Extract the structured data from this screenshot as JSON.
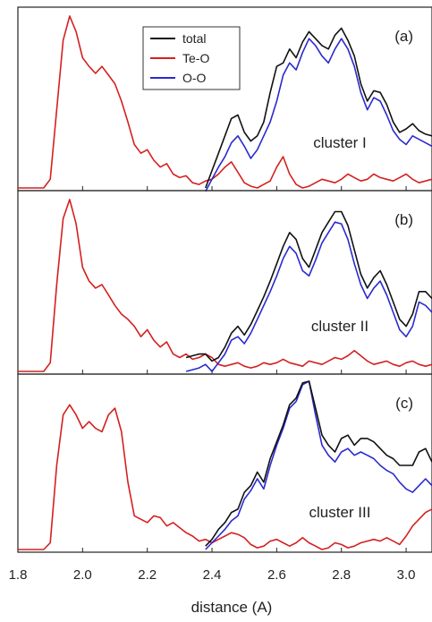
{
  "chart_data": {
    "type": "line",
    "xlabel": "distance (A)",
    "xlim": [
      1.8,
      3.08
    ],
    "xticks": [
      1.8,
      2.0,
      2.2,
      2.4,
      2.6,
      2.8,
      3.0
    ],
    "xtick_labels": [
      "1.8",
      "2.0",
      "2.2",
      "2.4",
      "2.6",
      "2.8",
      "3.0"
    ],
    "legend": {
      "placement": "top-center",
      "entries": [
        {
          "name": "total",
          "color": "#111111"
        },
        {
          "name": "Te-O",
          "color": "#d42020"
        },
        {
          "name": "O-O",
          "color": "#2a2ad0"
        }
      ]
    },
    "colors": {
      "total": "#111111",
      "Te-O": "#d42020",
      "O-O": "#2a2ad0"
    },
    "panels": [
      {
        "label": "(a)",
        "annotation": "cluster I",
        "ylim": [
          0,
          1.0
        ],
        "series": [
          {
            "name": "Te-O",
            "x": [
              1.8,
              1.88,
              1.9,
              1.92,
              1.94,
              1.96,
              1.98,
              2.0,
              2.02,
              2.04,
              2.06,
              2.08,
              2.1,
              2.12,
              2.14,
              2.16,
              2.18,
              2.2,
              2.22,
              2.24,
              2.26,
              2.28,
              2.3,
              2.32,
              2.34,
              2.36,
              2.38,
              2.4,
              2.42,
              2.44,
              2.46,
              2.48,
              2.5,
              2.52,
              2.54,
              2.56,
              2.58,
              2.6,
              2.62,
              2.64,
              2.66,
              2.68,
              2.7,
              2.72,
              2.74,
              2.76,
              2.78,
              2.8,
              2.82,
              2.84,
              2.86,
              2.88,
              2.9,
              2.92,
              2.94,
              2.96,
              2.98,
              3.0,
              3.02,
              3.04,
              3.06,
              3.08
            ],
            "values": [
              0,
              0,
              0.05,
              0.45,
              0.85,
              0.99,
              0.9,
              0.75,
              0.7,
              0.66,
              0.7,
              0.65,
              0.6,
              0.5,
              0.38,
              0.25,
              0.2,
              0.22,
              0.16,
              0.12,
              0.14,
              0.08,
              0.06,
              0.07,
              0.03,
              0.02,
              0.04,
              0.05,
              0.08,
              0.12,
              0.15,
              0.09,
              0.03,
              0.01,
              0.0,
              0.02,
              0.04,
              0.12,
              0.18,
              0.08,
              0.02,
              0.0,
              0.01,
              0.03,
              0.05,
              0.04,
              0.03,
              0.05,
              0.08,
              0.06,
              0.04,
              0.05,
              0.08,
              0.06,
              0.05,
              0.04,
              0.06,
              0.08,
              0.05,
              0.03,
              0.04,
              0.05
            ]
          },
          {
            "name": "O-O",
            "x": [
              2.38,
              2.4,
              2.42,
              2.44,
              2.46,
              2.48,
              2.5,
              2.52,
              2.54,
              2.56,
              2.58,
              2.6,
              2.62,
              2.64,
              2.66,
              2.68,
              2.7,
              2.72,
              2.74,
              2.76,
              2.78,
              2.8,
              2.82,
              2.84,
              2.86,
              2.88,
              2.9,
              2.92,
              2.94,
              2.96,
              2.98,
              3.0,
              3.02,
              3.04,
              3.06,
              3.08
            ],
            "values": [
              -0.02,
              0.05,
              0.12,
              0.18,
              0.26,
              0.3,
              0.24,
              0.17,
              0.22,
              0.3,
              0.38,
              0.5,
              0.65,
              0.72,
              0.68,
              0.78,
              0.86,
              0.82,
              0.76,
              0.72,
              0.8,
              0.86,
              0.8,
              0.7,
              0.55,
              0.45,
              0.52,
              0.5,
              0.42,
              0.33,
              0.28,
              0.25,
              0.3,
              0.28,
              0.26,
              0.24
            ]
          },
          {
            "name": "total",
            "x": [
              2.38,
              2.4,
              2.42,
              2.44,
              2.46,
              2.48,
              2.5,
              2.52,
              2.54,
              2.56,
              2.58,
              2.6,
              2.62,
              2.64,
              2.66,
              2.68,
              2.7,
              2.72,
              2.74,
              2.76,
              2.78,
              2.8,
              2.82,
              2.84,
              2.86,
              2.88,
              2.9,
              2.92,
              2.94,
              2.96,
              2.98,
              3.0,
              3.02,
              3.04,
              3.06,
              3.08
            ],
            "values": [
              0.0,
              0.1,
              0.2,
              0.3,
              0.4,
              0.42,
              0.32,
              0.27,
              0.3,
              0.38,
              0.55,
              0.7,
              0.72,
              0.8,
              0.75,
              0.84,
              0.9,
              0.86,
              0.82,
              0.8,
              0.88,
              0.92,
              0.85,
              0.76,
              0.6,
              0.5,
              0.56,
              0.55,
              0.48,
              0.38,
              0.32,
              0.34,
              0.37,
              0.33,
              0.31,
              0.3
            ]
          }
        ]
      },
      {
        "label": "(b)",
        "annotation": "cluster II",
        "ylim": [
          0,
          1.0
        ],
        "series": [
          {
            "name": "Te-O",
            "x": [
              1.8,
              1.88,
              1.9,
              1.92,
              1.94,
              1.96,
              1.98,
              2.0,
              2.02,
              2.04,
              2.06,
              2.08,
              2.1,
              2.12,
              2.14,
              2.16,
              2.18,
              2.2,
              2.22,
              2.24,
              2.26,
              2.28,
              2.3,
              2.32,
              2.34,
              2.36,
              2.38,
              2.4,
              2.42,
              2.44,
              2.46,
              2.48,
              2.5,
              2.52,
              2.54,
              2.56,
              2.58,
              2.6,
              2.62,
              2.64,
              2.66,
              2.68,
              2.7,
              2.72,
              2.74,
              2.76,
              2.78,
              2.8,
              2.82,
              2.84,
              2.86,
              2.88,
              2.9,
              2.92,
              2.94,
              2.96,
              2.98,
              3.0,
              3.02,
              3.04,
              3.06,
              3.08
            ],
            "values": [
              0,
              0,
              0.05,
              0.5,
              0.88,
              0.99,
              0.85,
              0.6,
              0.52,
              0.48,
              0.5,
              0.44,
              0.38,
              0.33,
              0.3,
              0.26,
              0.2,
              0.24,
              0.18,
              0.14,
              0.17,
              0.1,
              0.08,
              0.1,
              0.07,
              0.08,
              0.1,
              0.08,
              0.04,
              0.03,
              0.04,
              0.05,
              0.03,
              0.02,
              0.03,
              0.05,
              0.04,
              0.05,
              0.07,
              0.05,
              0.04,
              0.03,
              0.06,
              0.05,
              0.04,
              0.06,
              0.08,
              0.07,
              0.09,
              0.12,
              0.09,
              0.06,
              0.04,
              0.05,
              0.06,
              0.04,
              0.03,
              0.05,
              0.06,
              0.04,
              0.03,
              0.04
            ]
          },
          {
            "name": "O-O",
            "x": [
              2.32,
              2.34,
              2.36,
              2.38,
              2.4,
              2.42,
              2.44,
              2.46,
              2.48,
              2.5,
              2.52,
              2.54,
              2.56,
              2.58,
              2.6,
              2.62,
              2.64,
              2.66,
              2.68,
              2.7,
              2.72,
              2.74,
              2.76,
              2.78,
              2.8,
              2.82,
              2.84,
              2.86,
              2.88,
              2.9,
              2.92,
              2.94,
              2.96,
              2.98,
              3.0,
              3.02,
              3.04,
              3.06,
              3.08
            ],
            "values": [
              0.0,
              0.01,
              0.02,
              0.04,
              0.0,
              0.05,
              0.1,
              0.18,
              0.2,
              0.16,
              0.22,
              0.3,
              0.38,
              0.46,
              0.55,
              0.65,
              0.72,
              0.68,
              0.58,
              0.55,
              0.64,
              0.74,
              0.8,
              0.86,
              0.85,
              0.76,
              0.62,
              0.5,
              0.42,
              0.48,
              0.52,
              0.44,
              0.34,
              0.24,
              0.2,
              0.26,
              0.4,
              0.38,
              0.34
            ]
          },
          {
            "name": "total",
            "x": [
              2.32,
              2.34,
              2.36,
              2.38,
              2.4,
              2.42,
              2.44,
              2.46,
              2.48,
              2.5,
              2.52,
              2.54,
              2.56,
              2.58,
              2.6,
              2.62,
              2.64,
              2.66,
              2.68,
              2.7,
              2.72,
              2.74,
              2.76,
              2.78,
              2.8,
              2.82,
              2.84,
              2.86,
              2.88,
              2.9,
              2.92,
              2.94,
              2.96,
              2.98,
              3.0,
              3.02,
              3.04,
              3.06,
              3.08
            ],
            "values": [
              0.08,
              0.09,
              0.1,
              0.1,
              0.06,
              0.08,
              0.14,
              0.22,
              0.26,
              0.21,
              0.27,
              0.35,
              0.43,
              0.52,
              0.62,
              0.72,
              0.8,
              0.76,
              0.65,
              0.6,
              0.7,
              0.8,
              0.86,
              0.92,
              0.92,
              0.84,
              0.7,
              0.56,
              0.48,
              0.54,
              0.58,
              0.5,
              0.4,
              0.3,
              0.26,
              0.33,
              0.46,
              0.46,
              0.42
            ]
          }
        ]
      },
      {
        "label": "(c)",
        "annotation": "cluster III",
        "ylim": [
          0,
          1.0
        ],
        "series": [
          {
            "name": "Te-O",
            "x": [
              1.8,
              1.88,
              1.9,
              1.92,
              1.94,
              1.96,
              1.98,
              2.0,
              2.02,
              2.04,
              2.06,
              2.08,
              2.1,
              2.12,
              2.14,
              2.16,
              2.18,
              2.2,
              2.22,
              2.24,
              2.26,
              2.28,
              2.3,
              2.32,
              2.34,
              2.36,
              2.38,
              2.4,
              2.42,
              2.44,
              2.46,
              2.48,
              2.5,
              2.52,
              2.54,
              2.56,
              2.58,
              2.6,
              2.62,
              2.64,
              2.66,
              2.68,
              2.7,
              2.72,
              2.74,
              2.76,
              2.78,
              2.8,
              2.82,
              2.84,
              2.86,
              2.88,
              2.9,
              2.92,
              2.94,
              2.96,
              2.98,
              3.0,
              3.02,
              3.04,
              3.06,
              3.08
            ],
            "values": [
              0,
              0,
              0.04,
              0.5,
              0.8,
              0.86,
              0.8,
              0.72,
              0.76,
              0.72,
              0.7,
              0.8,
              0.84,
              0.7,
              0.4,
              0.2,
              0.18,
              0.16,
              0.2,
              0.19,
              0.14,
              0.16,
              0.13,
              0.1,
              0.08,
              0.05,
              0.06,
              0.04,
              0.06,
              0.08,
              0.1,
              0.09,
              0.07,
              0.03,
              0.01,
              0.02,
              0.05,
              0.06,
              0.04,
              0.02,
              0.04,
              0.07,
              0.04,
              0.02,
              0.0,
              0.01,
              0.04,
              0.03,
              0.01,
              0.02,
              0.04,
              0.05,
              0.06,
              0.05,
              0.07,
              0.05,
              0.03,
              0.08,
              0.14,
              0.18,
              0.22,
              0.24
            ]
          },
          {
            "name": "O-O",
            "x": [
              2.38,
              2.4,
              2.42,
              2.44,
              2.46,
              2.48,
              2.5,
              2.52,
              2.54,
              2.56,
              2.58,
              2.6,
              2.62,
              2.64,
              2.66,
              2.68,
              2.7,
              2.72,
              2.74,
              2.76,
              2.78,
              2.8,
              2.82,
              2.84,
              2.86,
              2.88,
              2.9,
              2.92,
              2.94,
              2.96,
              2.98,
              3.0,
              3.02,
              3.04,
              3.06,
              3.08
            ],
            "values": [
              0.0,
              0.04,
              0.08,
              0.12,
              0.17,
              0.2,
              0.3,
              0.35,
              0.42,
              0.36,
              0.5,
              0.62,
              0.72,
              0.84,
              0.88,
              0.98,
              1.0,
              0.8,
              0.62,
              0.56,
              0.52,
              0.58,
              0.6,
              0.56,
              0.58,
              0.56,
              0.54,
              0.5,
              0.47,
              0.45,
              0.4,
              0.36,
              0.34,
              0.38,
              0.42,
              0.38
            ]
          },
          {
            "name": "total",
            "x": [
              2.38,
              2.4,
              2.42,
              2.44,
              2.46,
              2.48,
              2.5,
              2.52,
              2.54,
              2.56,
              2.58,
              2.6,
              2.62,
              2.64,
              2.66,
              2.68,
              2.7,
              2.72,
              2.74,
              2.76,
              2.78,
              2.8,
              2.82,
              2.84,
              2.86,
              2.88,
              2.9,
              2.92,
              2.94,
              2.96,
              2.98,
              3.0,
              3.02,
              3.04,
              3.06,
              3.08
            ],
            "values": [
              0.02,
              0.06,
              0.12,
              0.16,
              0.22,
              0.24,
              0.34,
              0.38,
              0.46,
              0.4,
              0.54,
              0.64,
              0.74,
              0.86,
              0.9,
              0.99,
              1.0,
              0.84,
              0.68,
              0.62,
              0.58,
              0.66,
              0.68,
              0.62,
              0.66,
              0.66,
              0.64,
              0.6,
              0.56,
              0.54,
              0.5,
              0.5,
              0.5,
              0.58,
              0.6,
              0.52
            ]
          }
        ]
      }
    ]
  }
}
